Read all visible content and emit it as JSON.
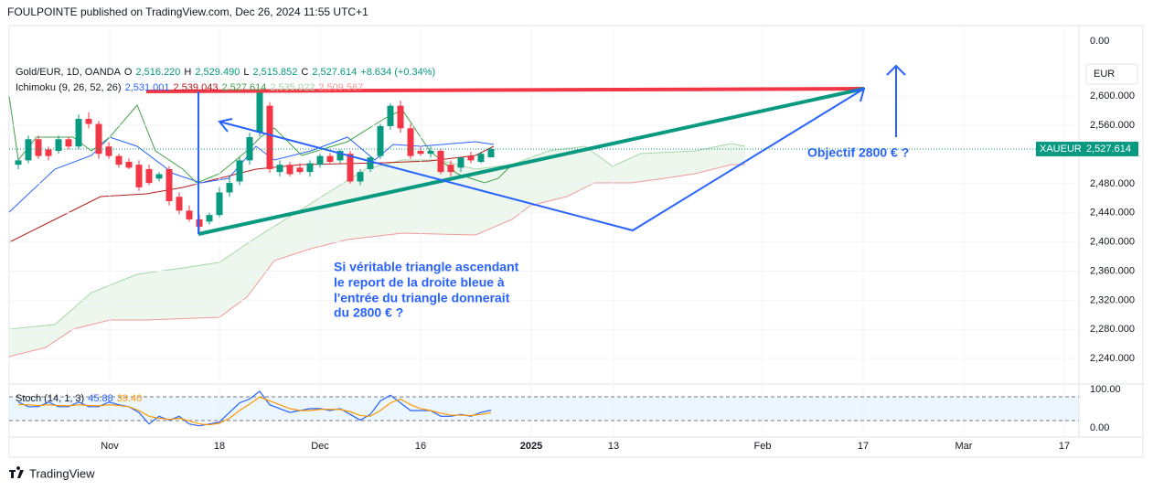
{
  "header": {
    "publisher": "FOULPOINTE published on TradingView.com, Dec 26, 2024 11:55 UTC+1",
    "brand": "TradingView",
    "top_scale_label": "0.00"
  },
  "chart_data": [
    {
      "type": "candlestick",
      "symbol": "Gold/EUR, 1D, OANDA",
      "ohlc_legend": [
        {
          "key": "O",
          "value": "2,516.220"
        },
        {
          "key": "H",
          "value": "2,529.490"
        },
        {
          "key": "L",
          "value": "2,515.852"
        },
        {
          "key": "C",
          "value": "2,527.614"
        }
      ],
      "change": "+8.634 (+0.34%)",
      "indicator": {
        "name": "Ichimoku (9, 26, 52, 26)",
        "values": [
          {
            "value": "2,531.001",
            "color": "#2962ff"
          },
          {
            "value": "2,539.043",
            "color": "#b71c1c"
          },
          {
            "value": "2,527.614",
            "color": "#43a047"
          },
          {
            "value": "2,535.022",
            "color": "#a5d6a7"
          },
          {
            "value": "2,509.567",
            "color": "#ef9a9a"
          }
        ]
      },
      "open": [
        2506,
        2512,
        2541,
        2527,
        2525,
        2541,
        2531,
        2569,
        2562,
        2531,
        2518,
        2510,
        2506,
        2500,
        2487,
        2500,
        2462,
        2443,
        2431,
        2428,
        2437,
        2468,
        2483,
        2512,
        2550,
        2587,
        2496,
        2506,
        2502,
        2496,
        2506,
        2518,
        2512,
        2521,
        2483,
        2500,
        2518,
        2559,
        2587,
        2556,
        2525,
        2521,
        2525,
        2506,
        2502,
        2518,
        2510,
        2516.22
      ],
      "high": [
        2514,
        2546,
        2546,
        2531,
        2546,
        2544,
        2575,
        2578,
        2566,
        2537,
        2521,
        2515,
        2512,
        2506,
        2496,
        2504,
        2468,
        2450,
        2437,
        2440,
        2475,
        2490,
        2516,
        2550,
        2610,
        2592,
        2512,
        2510,
        2508,
        2512,
        2521,
        2522,
        2527,
        2525,
        2500,
        2518,
        2562,
        2590,
        2594,
        2562,
        2531,
        2531,
        2528,
        2512,
        2516,
        2524,
        2524,
        2529.49
      ],
      "low": [
        2500,
        2508,
        2514,
        2512,
        2521,
        2527,
        2527,
        2556,
        2514,
        2514,
        2502,
        2500,
        2470,
        2478,
        2483,
        2450,
        2438,
        2428,
        2412,
        2424,
        2434,
        2462,
        2478,
        2506,
        2545,
        2495,
        2490,
        2490,
        2493,
        2490,
        2502,
        2508,
        2508,
        2480,
        2478,
        2496,
        2514,
        2554,
        2550,
        2514,
        2518,
        2516,
        2493,
        2490,
        2496,
        2508,
        2508,
        2515.852
      ],
      "close": [
        2512,
        2541,
        2518,
        2518,
        2541,
        2531,
        2569,
        2562,
        2521,
        2518,
        2506,
        2502,
        2475,
        2481,
        2493,
        2456,
        2443,
        2431,
        2421,
        2437,
        2468,
        2481,
        2512,
        2544,
        2606,
        2500,
        2506,
        2493,
        2496,
        2508,
        2518,
        2510,
        2525,
        2483,
        2496,
        2516,
        2559,
        2587,
        2556,
        2518,
        2521,
        2525,
        2496,
        2496,
        2516,
        2512,
        2521,
        2527.614
      ],
      "up_color": "#089981",
      "down_color": "#f23645",
      "ylim": [
        2205,
        2697
      ],
      "yticks": [
        {
          "value": 2600,
          "label": "2,600.000"
        },
        {
          "value": 2560,
          "label": "2,560.000"
        },
        {
          "value": 2480,
          "label": "2,480.000"
        },
        {
          "value": 2440,
          "label": "2,440.000"
        },
        {
          "value": 2400,
          "label": "2,400.000"
        },
        {
          "value": 2360,
          "label": "2,360.000"
        },
        {
          "value": 2320,
          "label": "2,320.000"
        },
        {
          "value": 2280,
          "label": "2,280.000"
        },
        {
          "value": 2240,
          "label": "2,240.000"
        }
      ],
      "last_price": {
        "value": 2527.614,
        "label": "2,527.614"
      },
      "ticker": "XAUEUR",
      "currency": "EUR",
      "x_labels": [
        "Nov",
        "18",
        "Dec",
        "16",
        "2025",
        "13",
        "Feb",
        "17",
        "Mar",
        "17"
      ],
      "annotations": [
        "Objectif 2800 € ?",
        "Si véritable triangle ascendant",
        "le report de la droite bleue à",
        "l'entrée du triangle donnerait",
        "du 2800 € ?"
      ]
    },
    {
      "type": "line",
      "title": "Stoch (14, 1, 3)",
      "series": [
        {
          "color": "#2962ff",
          "last_label": "45.88",
          "values": [
            67,
            55,
            55,
            67,
            55,
            55,
            67,
            55,
            55,
            67,
            60,
            55,
            40,
            10,
            30,
            20,
            30,
            10,
            5,
            10,
            15,
            40,
            65,
            75,
            95,
            60,
            50,
            40,
            45,
            50,
            50,
            45,
            50,
            35,
            20,
            35,
            70,
            85,
            65,
            45,
            45,
            45,
            30,
            30,
            35,
            30,
            40,
            45.88
          ]
        },
        {
          "color": "#ff9800",
          "last_label": "39.40",
          "values": [
            60,
            60,
            58,
            60,
            58,
            57,
            60,
            58,
            57,
            60,
            58,
            55,
            45,
            30,
            25,
            22,
            25,
            18,
            10,
            8,
            12,
            25,
            45,
            62,
            80,
            70,
            60,
            50,
            45,
            45,
            48,
            48,
            48,
            42,
            32,
            30,
            45,
            65,
            75,
            60,
            50,
            45,
            38,
            33,
            33,
            32,
            35,
            39.4
          ]
        }
      ],
      "ylim": [
        -24,
        114
      ],
      "yticks": [
        {
          "value": 100,
          "label": "100.00"
        },
        {
          "value": 0,
          "label": "0.00"
        }
      ]
    }
  ]
}
